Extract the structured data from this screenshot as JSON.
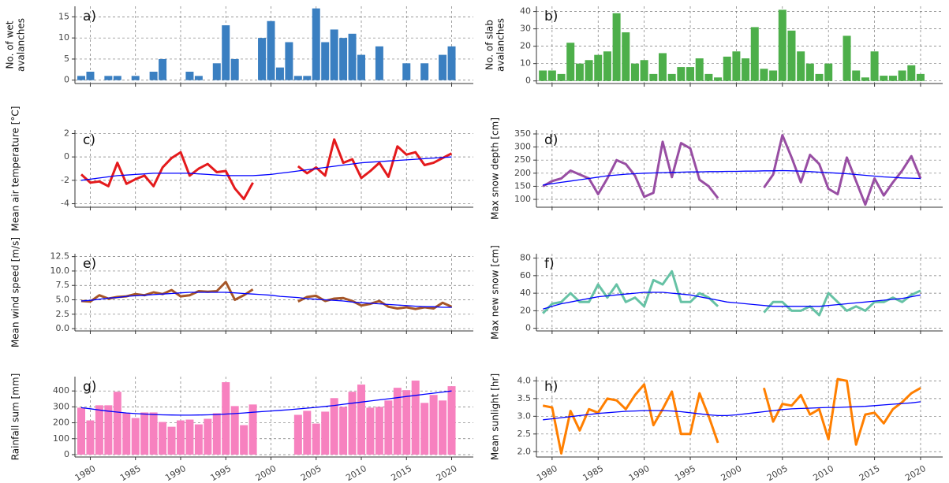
{
  "chart_data": [
    {
      "type": "bar",
      "label": "a)",
      "y_label": [
        "No. of wet",
        "avalanches"
      ],
      "color": "#3a7fc1",
      "grid": true,
      "x": [
        1979,
        1980,
        1981,
        1982,
        1983,
        1984,
        1985,
        1986,
        1987,
        1988,
        1989,
        1990,
        1991,
        1992,
        1993,
        1994,
        1995,
        1996,
        1997,
        1998,
        1999,
        2000,
        2001,
        2002,
        2003,
        2004,
        2005,
        2006,
        2007,
        2008,
        2009,
        2010,
        2011,
        2012,
        2013,
        2014,
        2015,
        2016,
        2017,
        2018,
        2019,
        2020
      ],
      "values": [
        1,
        2,
        0,
        1,
        1,
        0,
        1,
        0,
        2,
        5,
        0,
        0,
        2,
        1,
        0,
        4,
        13,
        5,
        0,
        0,
        10,
        14,
        3,
        9,
        1,
        1,
        17,
        9,
        12,
        10,
        11,
        6,
        0,
        8,
        0,
        0,
        4,
        0,
        4,
        0,
        6,
        8
      ],
      "xlim": [
        1978.3,
        2022.4
      ],
      "xticks": [
        1980,
        1985,
        1990,
        1995,
        2000,
        2005,
        2010,
        2015,
        2020
      ],
      "ylim": [
        -0.8,
        17.5
      ],
      "yticks": [
        0,
        5,
        10,
        15
      ]
    },
    {
      "type": "bar",
      "label": "b)",
      "y_label": [
        "No. of slab",
        "avalanches"
      ],
      "color": "#4daf4a",
      "grid": true,
      "x": [
        1979,
        1980,
        1981,
        1982,
        1983,
        1984,
        1985,
        1986,
        1987,
        1988,
        1989,
        1990,
        1991,
        1992,
        1993,
        1994,
        1995,
        1996,
        1997,
        1998,
        1999,
        2000,
        2001,
        2002,
        2003,
        2004,
        2005,
        2006,
        2007,
        2008,
        2009,
        2010,
        2011,
        2012,
        2013,
        2014,
        2015,
        2016,
        2017,
        2018,
        2019,
        2020
      ],
      "values": [
        6,
        6,
        4,
        22,
        10,
        12,
        15,
        17,
        39,
        28,
        10,
        12,
        4,
        16,
        4,
        8,
        8,
        13,
        4,
        2,
        14,
        17,
        13,
        31,
        7,
        6,
        41,
        29,
        17,
        10,
        4,
        10,
        0,
        26,
        6,
        2,
        17,
        3,
        3,
        6,
        9,
        4
      ],
      "xlim": [
        1978.3,
        2022.4
      ],
      "xticks": [
        1980,
        1985,
        1990,
        1995,
        2000,
        2005,
        2010,
        2015,
        2020
      ],
      "ylim": [
        -1.5,
        43
      ],
      "yticks": [
        0,
        10,
        20,
        30,
        40
      ]
    },
    {
      "type": "line",
      "label": "c)",
      "y_label": "Mean air temperature [°C]",
      "grid": true,
      "x": [
        1979,
        1980,
        1981,
        1982,
        1983,
        1984,
        1985,
        1986,
        1987,
        1988,
        1989,
        1990,
        1991,
        1992,
        1993,
        1994,
        1995,
        1996,
        1997,
        1998,
        1999,
        2000,
        2001,
        2002,
        2003,
        2004,
        2005,
        2006,
        2007,
        2008,
        2009,
        2010,
        2011,
        2012,
        2013,
        2014,
        2015,
        2016,
        2017,
        2018,
        2019,
        2020
      ],
      "series": [
        {
          "color": "#e41a1c",
          "values": [
            -1.5,
            -2.2,
            -2.1,
            -2.5,
            -0.5,
            -2.3,
            -1.9,
            -1.6,
            -2.5,
            -0.9,
            -0.1,
            0.4,
            -1.6,
            -1.0,
            -0.6,
            -1.3,
            -1.2,
            -2.7,
            -3.6,
            -2.2,
            null,
            null,
            null,
            null,
            -0.8,
            -1.4,
            -0.9,
            -1.6,
            1.5,
            -0.5,
            -0.2,
            -1.8,
            -1.2,
            -0.5,
            -1.7,
            0.9,
            0.2,
            0.4,
            -0.7,
            -0.5,
            -0.1,
            0.3
          ]
        },
        {
          "color": "#0000ff",
          "values": [
            -2.0,
            -1.9,
            -1.8,
            -1.7,
            -1.6,
            -1.55,
            -1.5,
            -1.45,
            -1.4,
            -1.4,
            -1.4,
            -1.4,
            -1.4,
            -1.45,
            -1.5,
            -1.55,
            -1.6,
            -1.6,
            -1.6,
            -1.6,
            -1.55,
            -1.5,
            -1.4,
            -1.3,
            -1.2,
            -1.1,
            -1.0,
            -0.9,
            -0.8,
            -0.7,
            -0.6,
            -0.5,
            -0.45,
            -0.4,
            -0.35,
            -0.3,
            -0.25,
            -0.2,
            -0.15,
            -0.1,
            -0.05,
            0.0
          ]
        }
      ],
      "xlim": [
        1978.3,
        2022.4
      ],
      "xticks": [
        1980,
        1985,
        1990,
        1995,
        2000,
        2005,
        2010,
        2015,
        2020
      ],
      "ylim": [
        -4.3,
        2.3
      ],
      "yticks": [
        -4,
        -2,
        0,
        2
      ]
    },
    {
      "type": "line",
      "label": "d)",
      "y_label": "Max snow depth [cm]",
      "grid": true,
      "x": [
        1979,
        1980,
        1981,
        1982,
        1983,
        1984,
        1985,
        1986,
        1987,
        1988,
        1989,
        1990,
        1991,
        1992,
        1993,
        1994,
        1995,
        1996,
        1997,
        1998,
        1999,
        2000,
        2001,
        2002,
        2003,
        2004,
        2005,
        2006,
        2007,
        2008,
        2009,
        2010,
        2011,
        2012,
        2013,
        2014,
        2015,
        2016,
        2017,
        2018,
        2019,
        2020
      ],
      "series": [
        {
          "color": "#984ea3",
          "values": [
            150,
            170,
            180,
            210,
            195,
            180,
            120,
            180,
            250,
            235,
            190,
            110,
            125,
            320,
            185,
            315,
            295,
            175,
            150,
            105,
            null,
            null,
            null,
            null,
            145,
            195,
            345,
            260,
            165,
            270,
            235,
            140,
            120,
            260,
            170,
            80,
            180,
            115,
            165,
            210,
            265,
            180
          ]
        },
        {
          "color": "#0000ff",
          "values": [
            155,
            160,
            165,
            170,
            175,
            180,
            185,
            190,
            193,
            196,
            198,
            200,
            201,
            202,
            203,
            204,
            205,
            205,
            206,
            206,
            207,
            207,
            208,
            208,
            209,
            209,
            210,
            209,
            208,
            206,
            204,
            202,
            200,
            198,
            195,
            192,
            189,
            186,
            184,
            182,
            181,
            180
          ]
        }
      ],
      "xlim": [
        1978.3,
        2022.4
      ],
      "xticks": [
        1980,
        1985,
        1990,
        1995,
        2000,
        2005,
        2010,
        2015,
        2020
      ],
      "ylim": [
        70,
        365
      ],
      "yticks": [
        100,
        150,
        200,
        250,
        300,
        350
      ]
    },
    {
      "type": "line",
      "label": "e)",
      "y_label": "Mean wind speed [m/s]",
      "grid": true,
      "x": [
        1979,
        1980,
        1981,
        1982,
        1983,
        1984,
        1985,
        1986,
        1987,
        1988,
        1989,
        1990,
        1991,
        1992,
        1993,
        1994,
        1995,
        1996,
        1997,
        1998,
        1999,
        2000,
        2001,
        2002,
        2003,
        2004,
        2005,
        2006,
        2007,
        2008,
        2009,
        2010,
        2011,
        2012,
        2013,
        2014,
        2015,
        2016,
        2017,
        2018,
        2019,
        2020
      ],
      "series": [
        {
          "color": "#a65628",
          "values": [
            4.8,
            4.7,
            5.8,
            5.2,
            5.5,
            5.6,
            6.0,
            5.8,
            6.3,
            6.0,
            6.7,
            5.6,
            5.8,
            6.5,
            6.4,
            6.5,
            8.1,
            5.0,
            5.8,
            6.8,
            null,
            null,
            null,
            null,
            4.7,
            5.5,
            5.7,
            4.8,
            5.2,
            5.3,
            4.8,
            4.0,
            4.3,
            4.8,
            3.8,
            3.5,
            3.7,
            3.4,
            3.7,
            3.5,
            4.5,
            3.8
          ]
        },
        {
          "color": "#0000ff",
          "values": [
            4.8,
            4.9,
            5.1,
            5.3,
            5.4,
            5.6,
            5.7,
            5.8,
            5.9,
            6.0,
            6.1,
            6.2,
            6.3,
            6.3,
            6.3,
            6.3,
            6.3,
            6.2,
            6.1,
            6.0,
            5.9,
            5.8,
            5.6,
            5.5,
            5.4,
            5.2,
            5.1,
            5.0,
            4.9,
            4.8,
            4.6,
            4.5,
            4.4,
            4.3,
            4.2,
            4.1,
            4.0,
            3.9,
            3.8,
            3.8,
            3.7,
            3.7
          ]
        }
      ],
      "xlim": [
        1978.3,
        2022.4
      ],
      "xticks": [
        1980,
        1985,
        1990,
        1995,
        2000,
        2005,
        2010,
        2015,
        2020
      ],
      "ylim": [
        -0.4,
        13
      ],
      "yticks": [
        {
          "value": 0,
          "label": "0.0"
        },
        2.5,
        {
          "value": 5,
          "label": "5.0"
        },
        7.5,
        {
          "value": 10,
          "label": "10.0"
        },
        12.5
      ]
    },
    {
      "type": "line",
      "label": "f)",
      "y_label": "Max new snow [cm]",
      "grid": true,
      "x": [
        1979,
        1980,
        1981,
        1982,
        1983,
        1984,
        1985,
        1986,
        1987,
        1988,
        1989,
        1990,
        1991,
        1992,
        1993,
        1994,
        1995,
        1996,
        1997,
        1998,
        1999,
        2000,
        2001,
        2002,
        2003,
        2004,
        2005,
        2006,
        2007,
        2008,
        2009,
        2010,
        2011,
        2012,
        2013,
        2014,
        2015,
        2016,
        2017,
        2018,
        2019,
        2020
      ],
      "series": [
        {
          "color": "#66c2a5",
          "values": [
            17,
            28,
            30,
            40,
            30,
            30,
            50,
            35,
            50,
            30,
            35,
            25,
            55,
            50,
            65,
            30,
            30,
            40,
            35,
            25,
            null,
            null,
            null,
            null,
            18,
            30,
            30,
            20,
            20,
            25,
            15,
            40,
            30,
            20,
            25,
            20,
            30,
            30,
            35,
            30,
            38,
            43
          ]
        },
        {
          "color": "#0000ff",
          "values": [
            22,
            25,
            28,
            30,
            32,
            34,
            36,
            37,
            38,
            39,
            40,
            41,
            41,
            41,
            40,
            39,
            38,
            36,
            34,
            32,
            30,
            29,
            28,
            27,
            26,
            25,
            25,
            25,
            25,
            25,
            25,
            26,
            27,
            28,
            29,
            30,
            31,
            32,
            33,
            34,
            36,
            38
          ]
        }
      ],
      "xlim": [
        1978.3,
        2022.4
      ],
      "xticks": [
        1980,
        1985,
        1990,
        1995,
        2000,
        2005,
        2010,
        2015,
        2020
      ],
      "ylim": [
        -3,
        85
      ],
      "yticks": [
        0,
        20,
        40,
        60,
        80
      ]
    },
    {
      "type": "bar",
      "label": "g)",
      "y_label": "Rainfall sum [mm]",
      "color": "#f781bf",
      "grid": true,
      "x": [
        1979,
        1980,
        1981,
        1982,
        1983,
        1984,
        1985,
        1986,
        1987,
        1988,
        1989,
        1990,
        1991,
        1992,
        1993,
        1994,
        1995,
        1996,
        1997,
        1998,
        1999,
        2000,
        2001,
        2002,
        2003,
        2004,
        2005,
        2006,
        2007,
        2008,
        2009,
        2010,
        2011,
        2012,
        2013,
        2014,
        2015,
        2016,
        2017,
        2018,
        2019,
        2020
      ],
      "values": [
        295,
        215,
        310,
        310,
        395,
        260,
        230,
        265,
        265,
        205,
        175,
        215,
        220,
        190,
        225,
        260,
        455,
        305,
        185,
        315,
        null,
        null,
        null,
        null,
        250,
        275,
        195,
        270,
        355,
        300,
        395,
        440,
        295,
        300,
        340,
        420,
        405,
        465,
        325,
        375,
        340,
        430
      ],
      "trend": {
        "color": "#0000ff",
        "values": [
          295,
          288,
          280,
          273,
          267,
          262,
          258,
          255,
          252,
          250,
          249,
          248,
          248,
          249,
          250,
          252,
          255,
          258,
          262,
          266,
          270,
          274,
          278,
          282,
          287,
          292,
          297,
          303,
          309,
          316,
          323,
          330,
          337,
          344,
          351,
          358,
          365,
          372,
          379,
          386,
          393,
          400
        ]
      },
      "xlim": [
        1978.3,
        2022.4
      ],
      "xticks": [
        1980,
        1985,
        1990,
        1995,
        2000,
        2005,
        2010,
        2015,
        2020
      ],
      "ylim": [
        -15,
        490
      ],
      "yticks": [
        0,
        100,
        200,
        300,
        400
      ]
    },
    {
      "type": "line",
      "label": "h)",
      "y_label": "Mean sunlight [hr]",
      "grid": true,
      "x": [
        1979,
        1980,
        1981,
        1982,
        1983,
        1984,
        1985,
        1986,
        1987,
        1988,
        1989,
        1990,
        1991,
        1992,
        1993,
        1994,
        1995,
        1996,
        1997,
        1998,
        1999,
        2000,
        2001,
        2002,
        2003,
        2004,
        2005,
        2006,
        2007,
        2008,
        2009,
        2010,
        2011,
        2012,
        2013,
        2014,
        2015,
        2016,
        2017,
        2018,
        2019,
        2020
      ],
      "series": [
        {
          "color": "#ff7f00",
          "values": [
            3.3,
            3.25,
            1.95,
            3.15,
            2.6,
            3.2,
            3.1,
            3.5,
            3.45,
            3.2,
            3.6,
            3.9,
            2.75,
            3.2,
            3.7,
            2.5,
            2.5,
            3.65,
            3.0,
            2.25,
            null,
            null,
            null,
            null,
            3.8,
            2.85,
            3.35,
            3.3,
            3.6,
            3.05,
            3.2,
            2.35,
            4.05,
            4.0,
            2.2,
            3.05,
            3.1,
            2.8,
            3.2,
            3.4,
            3.65,
            3.8
          ]
        },
        {
          "color": "#0000ff",
          "values": [
            2.9,
            2.93,
            2.96,
            2.99,
            3.02,
            3.05,
            3.08,
            3.1,
            3.12,
            3.14,
            3.15,
            3.16,
            3.16,
            3.16,
            3.15,
            3.13,
            3.1,
            3.07,
            3.04,
            3.02,
            3.02,
            3.04,
            3.07,
            3.1,
            3.13,
            3.16,
            3.19,
            3.21,
            3.22,
            3.23,
            3.24,
            3.25,
            3.25,
            3.26,
            3.27,
            3.28,
            3.3,
            3.32,
            3.34,
            3.36,
            3.38,
            3.41
          ]
        }
      ],
      "xlim": [
        1978.3,
        2022.4
      ],
      "xticks": [
        1980,
        1985,
        1990,
        1995,
        2000,
        2005,
        2010,
        2015,
        2020
      ],
      "ylim": [
        1.85,
        4.12
      ],
      "yticks": [
        {
          "value": 2,
          "label": "2.0"
        },
        2.5,
        {
          "value": 3,
          "label": "3.0"
        },
        3.5,
        {
          "value": 4,
          "label": "4.0"
        }
      ]
    }
  ]
}
